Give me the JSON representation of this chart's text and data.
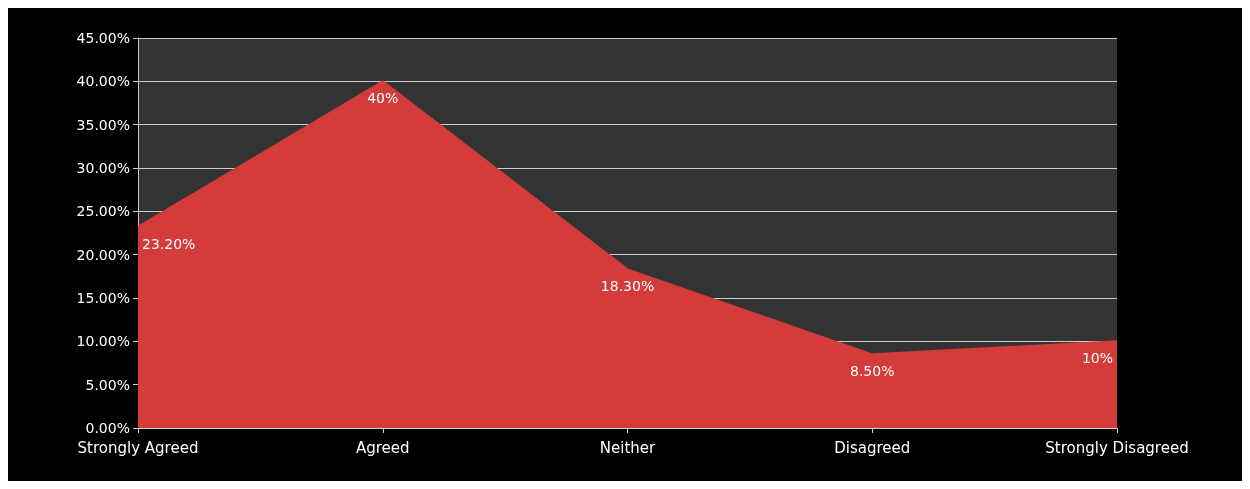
{
  "chart_data": {
    "type": "area",
    "categories": [
      "Strongly Agreed",
      "Agreed",
      "Neither",
      "Disagreed",
      "Strongly Disagreed"
    ],
    "values": [
      23.2,
      40,
      18.3,
      8.5,
      10
    ],
    "color": "#d43b3b",
    "value_labels": [
      "23.20%",
      "40%",
      "18.30%",
      "8.50%",
      "10%"
    ],
    "ylim": [
      0,
      45
    ],
    "yticks": [
      {
        "value": 0,
        "label": "0.00%"
      },
      {
        "value": 5,
        "label": "5.00%"
      },
      {
        "value": 10,
        "label": "10.00%"
      },
      {
        "value": 15,
        "label": "15.00%"
      },
      {
        "value": 20,
        "label": "20.00%"
      },
      {
        "value": 25,
        "label": "25.00%"
      },
      {
        "value": 30,
        "label": "30.00%"
      },
      {
        "value": 35,
        "label": "35.00%"
      },
      {
        "value": 40,
        "label": "40.00%"
      },
      {
        "value": 45,
        "label": "45.00%"
      }
    ],
    "grid": "y",
    "marker": "none"
  }
}
